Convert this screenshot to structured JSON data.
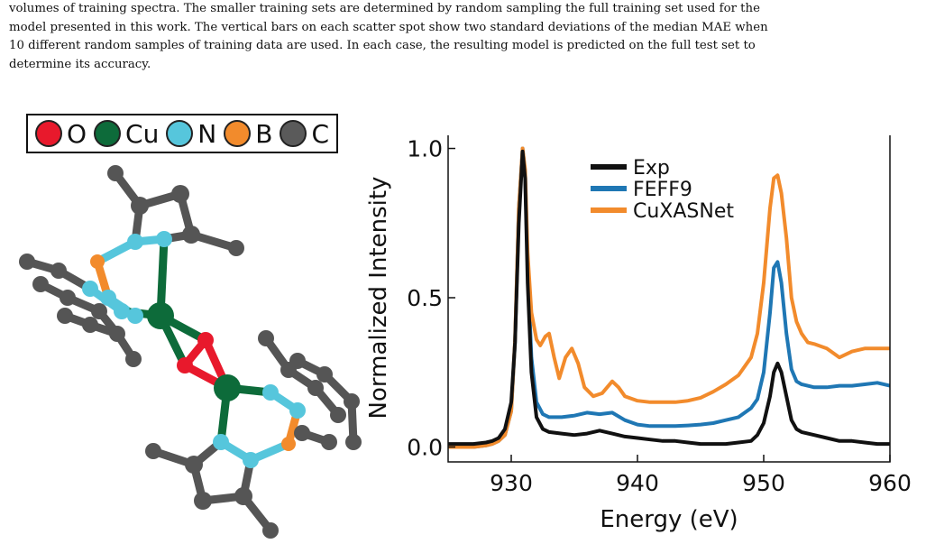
{
  "caption": {
    "line1": "volumes of training spectra. The smaller training sets are determined by random sampling the full training set used for the",
    "line2": "model presented in this work. The vertical bars on each scatter spot show two standard deviations of the median MAE when",
    "line3": "10 different random samples of training data are used. In each case, the resulting model is predicted on the full test set to",
    "line4": "determine its accuracy."
  },
  "element_legend": [
    {
      "symbol": "O",
      "color": "#e8192c"
    },
    {
      "symbol": "Cu",
      "color": "#0d6b3a"
    },
    {
      "symbol": "N",
      "color": "#56c6dc"
    },
    {
      "symbol": "B",
      "color": "#f28b2c"
    },
    {
      "symbol": "C",
      "color": "#5a5a5a"
    }
  ],
  "chart_data": {
    "type": "line",
    "xlabel": "Energy (eV)",
    "ylabel": "Normalized Intensity",
    "xlim": [
      925,
      960
    ],
    "ylim": [
      -0.05,
      1.05
    ],
    "xticks": [
      930,
      940,
      950,
      960
    ],
    "yticks": [
      0.0,
      0.5,
      1.0
    ],
    "ytick_labels": [
      "0.0",
      "0.5",
      "1.0"
    ],
    "legend_position": "top-center",
    "grid": false,
    "series": [
      {
        "name": "Exp",
        "color": "#111111",
        "x": [
          925,
          926,
          927,
          928,
          928.5,
          929,
          929.5,
          930,
          930.3,
          930.6,
          930.9,
          931.1,
          931.3,
          931.6,
          932,
          932.5,
          933,
          934,
          935,
          936,
          937,
          938,
          939,
          940,
          941,
          942,
          943,
          944,
          945,
          946,
          947,
          948,
          949,
          949.5,
          950,
          950.5,
          950.8,
          951.1,
          951.4,
          951.8,
          952.2,
          952.6,
          953,
          954,
          955,
          956,
          957,
          958,
          959,
          960
        ],
        "y": [
          0.01,
          0.01,
          0.01,
          0.015,
          0.02,
          0.03,
          0.06,
          0.15,
          0.35,
          0.75,
          0.99,
          0.9,
          0.55,
          0.25,
          0.1,
          0.06,
          0.05,
          0.045,
          0.04,
          0.045,
          0.055,
          0.045,
          0.035,
          0.03,
          0.025,
          0.02,
          0.02,
          0.015,
          0.01,
          0.01,
          0.01,
          0.015,
          0.02,
          0.04,
          0.08,
          0.17,
          0.25,
          0.28,
          0.25,
          0.17,
          0.09,
          0.06,
          0.05,
          0.04,
          0.03,
          0.02,
          0.02,
          0.015,
          0.01,
          0.01
        ]
      },
      {
        "name": "FEFF9",
        "color": "#1f77b4",
        "x": [
          925,
          926,
          927,
          928,
          928.5,
          929,
          929.5,
          930,
          930.3,
          930.6,
          930.9,
          931.1,
          931.3,
          931.6,
          932,
          932.5,
          933,
          934,
          935,
          936,
          937,
          938,
          939,
          940,
          941,
          942,
          943,
          944,
          945,
          946,
          947,
          948,
          949,
          949.5,
          950,
          950.5,
          950.8,
          951.1,
          951.4,
          951.8,
          952.2,
          952.6,
          953,
          954,
          955,
          956,
          957,
          958,
          959,
          960
        ],
        "y": [
          0.0,
          0.0,
          0.0,
          0.005,
          0.01,
          0.02,
          0.04,
          0.12,
          0.35,
          0.8,
          1.0,
          0.92,
          0.6,
          0.3,
          0.15,
          0.11,
          0.1,
          0.1,
          0.105,
          0.115,
          0.11,
          0.115,
          0.09,
          0.075,
          0.07,
          0.07,
          0.07,
          0.072,
          0.075,
          0.08,
          0.09,
          0.1,
          0.13,
          0.16,
          0.25,
          0.45,
          0.6,
          0.62,
          0.55,
          0.38,
          0.26,
          0.22,
          0.21,
          0.2,
          0.2,
          0.205,
          0.205,
          0.21,
          0.215,
          0.205
        ]
      },
      {
        "name": "CuXASNet",
        "color": "#f28b2c",
        "x": [
          925,
          926,
          927,
          928,
          928.5,
          929,
          929.5,
          930,
          930.3,
          930.6,
          930.9,
          931.1,
          931.3,
          931.6,
          932,
          932.3,
          932.7,
          933,
          933.4,
          933.8,
          934.3,
          934.8,
          935.3,
          935.8,
          936.5,
          937.2,
          938,
          938.5,
          939,
          940,
          941,
          942,
          943,
          944,
          945,
          946,
          947,
          948,
          949,
          949.5,
          950,
          950.5,
          950.8,
          951.1,
          951.4,
          951.8,
          952.2,
          952.6,
          953,
          953.5,
          954,
          955,
          956,
          957,
          958,
          959,
          960
        ],
        "y": [
          0.0,
          0.0,
          0.0,
          0.005,
          0.01,
          0.02,
          0.04,
          0.12,
          0.36,
          0.8,
          1.0,
          0.93,
          0.65,
          0.45,
          0.36,
          0.34,
          0.37,
          0.38,
          0.3,
          0.23,
          0.3,
          0.33,
          0.28,
          0.2,
          0.17,
          0.18,
          0.22,
          0.2,
          0.17,
          0.155,
          0.15,
          0.15,
          0.15,
          0.155,
          0.165,
          0.185,
          0.21,
          0.24,
          0.3,
          0.38,
          0.55,
          0.8,
          0.9,
          0.91,
          0.85,
          0.7,
          0.5,
          0.42,
          0.38,
          0.35,
          0.345,
          0.33,
          0.3,
          0.32,
          0.33,
          0.33,
          0.33
        ]
      }
    ]
  }
}
